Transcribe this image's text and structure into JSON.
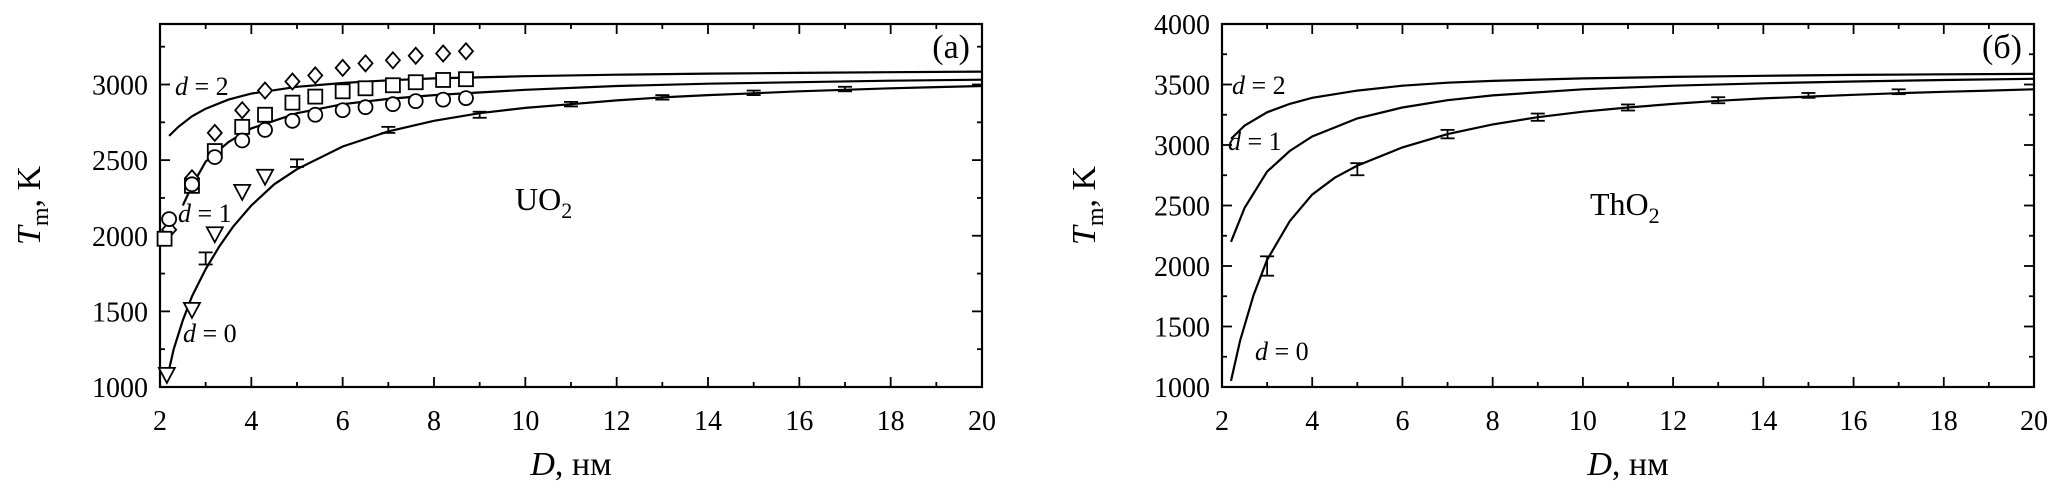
{
  "chart_data": [
    {
      "type": "scatter",
      "panel_label": "(a)",
      "compound_base": "UO",
      "compound_sub": "2",
      "xlabel_var": "D",
      "xlabel_unit": ", нм",
      "ylabel_var": "T",
      "ylabel_sub": "m",
      "ylabel_unit": ", K",
      "xlim": [
        2,
        20
      ],
      "ylim": [
        1000,
        3400
      ],
      "x_ticks": [
        2,
        4,
        6,
        8,
        10,
        12,
        14,
        16,
        18,
        20
      ],
      "x_tick_labels": [
        "2",
        "4",
        "6",
        "8",
        "10",
        "12",
        "14",
        "16",
        "18",
        "20"
      ],
      "y_ticks": [
        1000,
        1500,
        2000,
        2500,
        3000
      ],
      "y_tick_labels": [
        "1000",
        "1500",
        "2000",
        "2500",
        "3000"
      ],
      "curves": [
        {
          "label": "d = 2",
          "x": [
            2.2,
            2.4,
            2.7,
            3,
            3.5,
            4,
            5,
            6,
            7,
            8,
            10,
            12,
            14,
            16,
            18,
            20
          ],
          "y": [
            2660,
            2720,
            2790,
            2840,
            2900,
            2940,
            2985,
            3010,
            3028,
            3040,
            3055,
            3065,
            3072,
            3077,
            3081,
            3085
          ]
        },
        {
          "label": "d = 1",
          "x": [
            2.5,
            2.7,
            3,
            3.5,
            4,
            5,
            6,
            7,
            8,
            10,
            12,
            14,
            16,
            18,
            20
          ],
          "y": [
            2200,
            2330,
            2490,
            2620,
            2710,
            2810,
            2870,
            2905,
            2930,
            2965,
            2990,
            3005,
            3015,
            3025,
            3032
          ]
        },
        {
          "label": "d = 0",
          "x": [
            2.15,
            2.3,
            2.5,
            2.7,
            3,
            3.3,
            3.6,
            4,
            4.5,
            5,
            6,
            7,
            8,
            9,
            10,
            11,
            12,
            13,
            14,
            15,
            16,
            17,
            18,
            19,
            20
          ],
          "y": [
            1050,
            1250,
            1440,
            1600,
            1780,
            1930,
            2060,
            2200,
            2340,
            2440,
            2590,
            2690,
            2760,
            2810,
            2845,
            2870,
            2895,
            2915,
            2930,
            2942,
            2955,
            2965,
            2975,
            2983,
            2990
          ]
        }
      ],
      "error_points": [
        {
          "x": 3,
          "y": 1850,
          "err": 40
        },
        {
          "x": 5,
          "y": 2480,
          "err": 25
        },
        {
          "x": 7,
          "y": 2700,
          "err": 20
        },
        {
          "x": 9,
          "y": 2800,
          "err": 20
        },
        {
          "x": 11,
          "y": 2870,
          "err": 15
        },
        {
          "x": 13,
          "y": 2915,
          "err": 15
        },
        {
          "x": 15,
          "y": 2945,
          "err": 15
        },
        {
          "x": 17,
          "y": 2970,
          "err": 15
        }
      ],
      "scatter_series": [
        {
          "marker": "diamond",
          "points": [
            [
              2.2,
              2040
            ],
            [
              2.7,
              2380
            ],
            [
              3.2,
              2680
            ],
            [
              3.8,
              2830
            ],
            [
              4.3,
              2960
            ],
            [
              4.9,
              3020
            ],
            [
              5.4,
              3060
            ],
            [
              6.0,
              3110
            ],
            [
              6.5,
              3140
            ],
            [
              7.1,
              3160
            ],
            [
              7.6,
              3190
            ],
            [
              8.2,
              3205
            ],
            [
              8.7,
              3220
            ]
          ]
        },
        {
          "marker": "square",
          "points": [
            [
              2.1,
              1980
            ],
            [
              2.7,
              2330
            ],
            [
              3.2,
              2560
            ],
            [
              3.8,
              2720
            ],
            [
              4.3,
              2800
            ],
            [
              4.9,
              2880
            ],
            [
              5.4,
              2920
            ],
            [
              6.0,
              2955
            ],
            [
              6.5,
              2975
            ],
            [
              7.1,
              2995
            ],
            [
              7.6,
              3015
            ],
            [
              8.2,
              3030
            ],
            [
              8.7,
              3035
            ]
          ]
        },
        {
          "marker": "circle",
          "points": [
            [
              2.2,
              2110
            ],
            [
              2.7,
              2340
            ],
            [
              3.2,
              2520
            ],
            [
              3.8,
              2630
            ],
            [
              4.3,
              2700
            ],
            [
              4.9,
              2760
            ],
            [
              5.4,
              2800
            ],
            [
              6.0,
              2830
            ],
            [
              6.5,
              2850
            ],
            [
              7.1,
              2870
            ],
            [
              7.6,
              2890
            ],
            [
              8.2,
              2900
            ],
            [
              8.7,
              2910
            ]
          ]
        },
        {
          "marker": "triangle-down",
          "points": [
            [
              2.15,
              1080
            ],
            [
              2.7,
              1510
            ],
            [
              3.2,
              2010
            ],
            [
              3.8,
              2290
            ],
            [
              4.3,
              2390
            ]
          ]
        }
      ]
    },
    {
      "type": "line",
      "panel_label": "(б)",
      "compound_base": "ThO",
      "compound_sub": "2",
      "xlabel_var": "D",
      "xlabel_unit": ", нм",
      "ylabel_var": "T",
      "ylabel_sub": "m",
      "ylabel_unit": ", K",
      "xlim": [
        2,
        20
      ],
      "ylim": [
        1000,
        4000
      ],
      "x_ticks": [
        2,
        4,
        6,
        8,
        10,
        12,
        14,
        16,
        18,
        20
      ],
      "x_tick_labels": [
        "2",
        "4",
        "6",
        "8",
        "10",
        "12",
        "14",
        "16",
        "18",
        "20"
      ],
      "y_ticks": [
        1000,
        1500,
        2000,
        2500,
        3000,
        3500,
        4000
      ],
      "y_tick_labels": [
        "1000",
        "1500",
        "2000",
        "2500",
        "3000",
        "3500",
        "4000"
      ],
      "curves": [
        {
          "label": "d = 2",
          "x": [
            2.2,
            2.5,
            3,
            3.5,
            4,
            5,
            6,
            7,
            8,
            10,
            12,
            14,
            16,
            18,
            20
          ],
          "y": [
            3050,
            3160,
            3270,
            3340,
            3390,
            3450,
            3490,
            3515,
            3530,
            3550,
            3563,
            3572,
            3579,
            3584,
            3588
          ]
        },
        {
          "label": "d = 1",
          "x": [
            2.2,
            2.5,
            3,
            3.5,
            4,
            5,
            6,
            7,
            8,
            10,
            12,
            14,
            16,
            18,
            20
          ],
          "y": [
            2200,
            2480,
            2780,
            2950,
            3070,
            3220,
            3310,
            3370,
            3410,
            3460,
            3490,
            3510,
            3525,
            3537,
            3547
          ]
        },
        {
          "label": "d = 0",
          "x": [
            2.2,
            2.4,
            2.7,
            3,
            3.5,
            4,
            4.5,
            5,
            6,
            7,
            8,
            9,
            10,
            11,
            12,
            13,
            14,
            15,
            16,
            17,
            18,
            19,
            20
          ],
          "y": [
            1050,
            1380,
            1760,
            2050,
            2370,
            2590,
            2730,
            2830,
            2980,
            3090,
            3170,
            3230,
            3275,
            3310,
            3340,
            3365,
            3385,
            3400,
            3415,
            3428,
            3440,
            3450,
            3460
          ]
        }
      ],
      "error_points": [
        {
          "x": 3,
          "y": 2000,
          "err": 80
        },
        {
          "x": 5,
          "y": 2800,
          "err": 50
        },
        {
          "x": 7,
          "y": 3090,
          "err": 35
        },
        {
          "x": 9,
          "y": 3230,
          "err": 30
        },
        {
          "x": 11,
          "y": 3310,
          "err": 25
        },
        {
          "x": 13,
          "y": 3370,
          "err": 25
        },
        {
          "x": 15,
          "y": 3410,
          "err": 20
        },
        {
          "x": 17,
          "y": 3440,
          "err": 20
        }
      ],
      "scatter_series": []
    }
  ]
}
